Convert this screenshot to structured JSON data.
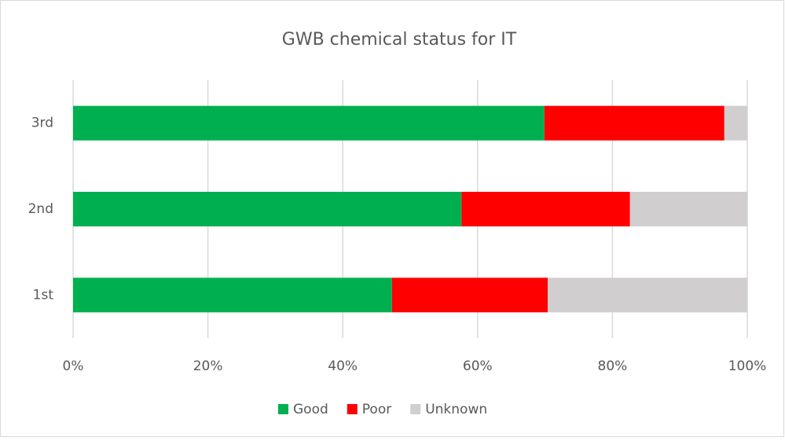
{
  "chart_data": {
    "type": "bar",
    "orientation": "horizontal",
    "stacked": true,
    "title": "GWB chemical status for IT",
    "categories": [
      "1st",
      "2nd",
      "3rd"
    ],
    "series": [
      {
        "name": "Good",
        "color": "#00b050",
        "values": [
          47.3,
          57.6,
          69.9
        ]
      },
      {
        "name": "Poor",
        "color": "#ff0000",
        "values": [
          23.1,
          25.0,
          26.7
        ]
      },
      {
        "name": "Unknown",
        "color": "#d0cece",
        "values": [
          29.6,
          17.4,
          3.4
        ]
      }
    ],
    "xlim": [
      0,
      100
    ],
    "xticks": [
      {
        "value": 0,
        "label": "0%"
      },
      {
        "value": 20,
        "label": "20%"
      },
      {
        "value": 40,
        "label": "40%"
      },
      {
        "value": 60,
        "label": "60%"
      },
      {
        "value": 80,
        "label": "80%"
      },
      {
        "value": 100,
        "label": "100%"
      }
    ],
    "grid": true,
    "legend": "bottom"
  }
}
